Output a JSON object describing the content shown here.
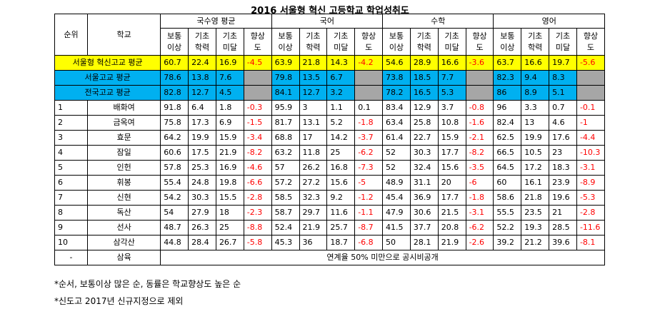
{
  "title": "2016 서울형 혁신 고등학교 학업성취도",
  "headers": {
    "rank": "순위",
    "school": "학교",
    "groups": [
      "국수영 평균",
      "국어",
      "수학",
      "영어"
    ],
    "sub": [
      [
        "보통",
        "이상"
      ],
      [
        "기초",
        "학력"
      ],
      [
        "기초",
        "미달"
      ],
      [
        "향상",
        "도"
      ]
    ]
  },
  "avg_rows": [
    {
      "label": "서울형 혁신고교 평균",
      "values": [
        "60.7",
        "22.4",
        "16.9",
        "-4.5",
        "63.9",
        "21.8",
        "14.3",
        "-4.2",
        "54.6",
        "28.9",
        "16.6",
        "-3.6",
        "63.7",
        "16.6",
        "19.7",
        "-5.6"
      ]
    },
    {
      "label": "서울고교 평균",
      "values": [
        "78.6",
        "13.8",
        "7.6",
        "",
        "79.8",
        "13.5",
        "6.7",
        "",
        "73.8",
        "18.5",
        "7.7",
        "",
        "82.3",
        "9.4",
        "8.3",
        ""
      ]
    },
    {
      "label": "전국고교 평균",
      "values": [
        "82.8",
        "12.7",
        "4.5",
        "",
        "84.1",
        "12.7",
        "3.2",
        "",
        "78.2",
        "16.5",
        "5.3",
        "",
        "86",
        "8.9",
        "5.1",
        ""
      ]
    }
  ],
  "rows": [
    {
      "rank": "1",
      "school": "배화여",
      "values": [
        "91.8",
        "6.4",
        "1.8",
        "-0.3",
        "95.9",
        "3",
        "1.1",
        "0.1",
        "83.4",
        "12.9",
        "3.7",
        "-0.8",
        "96",
        "3.3",
        "0.7",
        "-0.1"
      ]
    },
    {
      "rank": "2",
      "school": "금옥여",
      "values": [
        "75.8",
        "17.3",
        "6.9",
        "-1.5",
        "81.7",
        "13.1",
        "5.2",
        "-1.8",
        "63.4",
        "25.8",
        "10.8",
        "-1.6",
        "82.4",
        "13",
        "4.6",
        "-1"
      ]
    },
    {
      "rank": "3",
      "school": "효문",
      "values": [
        "64.2",
        "19.9",
        "15.9",
        "-3.4",
        "68.8",
        "17",
        "14.2",
        "-3.7",
        "61.4",
        "22.7",
        "15.9",
        "-2.1",
        "62.5",
        "19.9",
        "17.6",
        "-4.4"
      ]
    },
    {
      "rank": "4",
      "school": "잠일",
      "values": [
        "60.6",
        "17.5",
        "21.9",
        "-8.2",
        "63.2",
        "11.8",
        "25",
        "-6.2",
        "52",
        "30.3",
        "17.7",
        "-8.2",
        "66.5",
        "10.5",
        "23",
        "-10.3"
      ]
    },
    {
      "rank": "5",
      "school": "인헌",
      "values": [
        "57.8",
        "25.3",
        "16.9",
        "-4.6",
        "57",
        "26.2",
        "16.8",
        "-7.3",
        "52",
        "32.4",
        "15.6",
        "-3.5",
        "64.5",
        "17.2",
        "18.3",
        "-3.1"
      ]
    },
    {
      "rank": "6",
      "school": "휘봉",
      "values": [
        "55.4",
        "24.8",
        "19.8",
        "-6.6",
        "57.2",
        "27.2",
        "15.6",
        "-5",
        "48.9",
        "31.1",
        "20",
        "-6",
        "60",
        "16.1",
        "23.9",
        "-8.9"
      ]
    },
    {
      "rank": "7",
      "school": "신현",
      "values": [
        "54.2",
        "30.3",
        "15.5",
        "-2.8",
        "58.5",
        "32.3",
        "9.2",
        "-1.2",
        "45.4",
        "36.9",
        "17.7",
        "-1.8",
        "58.6",
        "21.8",
        "19.6",
        "-5.3"
      ]
    },
    {
      "rank": "8",
      "school": "독산",
      "values": [
        "54",
        "27.9",
        "18",
        "-2.3",
        "58.7",
        "29.7",
        "11.6",
        "-1.1",
        "47.9",
        "30.6",
        "21.5",
        "-3.1",
        "55.5",
        "23.5",
        "21",
        "-2.8"
      ]
    },
    {
      "rank": "9",
      "school": "선사",
      "values": [
        "48.7",
        "26.3",
        "25",
        "-8.8",
        "52.4",
        "21.9",
        "25.7",
        "-8.7",
        "41.5",
        "37.7",
        "20.8",
        "-6.2",
        "52.2",
        "19.3",
        "28.5",
        "-11.6"
      ]
    },
    {
      "rank": "10",
      "school": "삼각산",
      "values": [
        "44.8",
        "28.4",
        "26.7",
        "-5.8",
        "45.3",
        "36",
        "18.7",
        "-6.8",
        "50",
        "28.1",
        "21.9",
        "-2.6",
        "39.2",
        "21.2",
        "39.6",
        "-8.1"
      ]
    }
  ],
  "last_row": {
    "rank": "-",
    "school": "삼육",
    "text": "연계율 50% 미만으로 공시비공개"
  },
  "notes": [
    "*순서, 보통이상 많은 순, 동률은 학교향상도 높은 순",
    "*신도고 2017년 신규지정으로 제외"
  ]
}
